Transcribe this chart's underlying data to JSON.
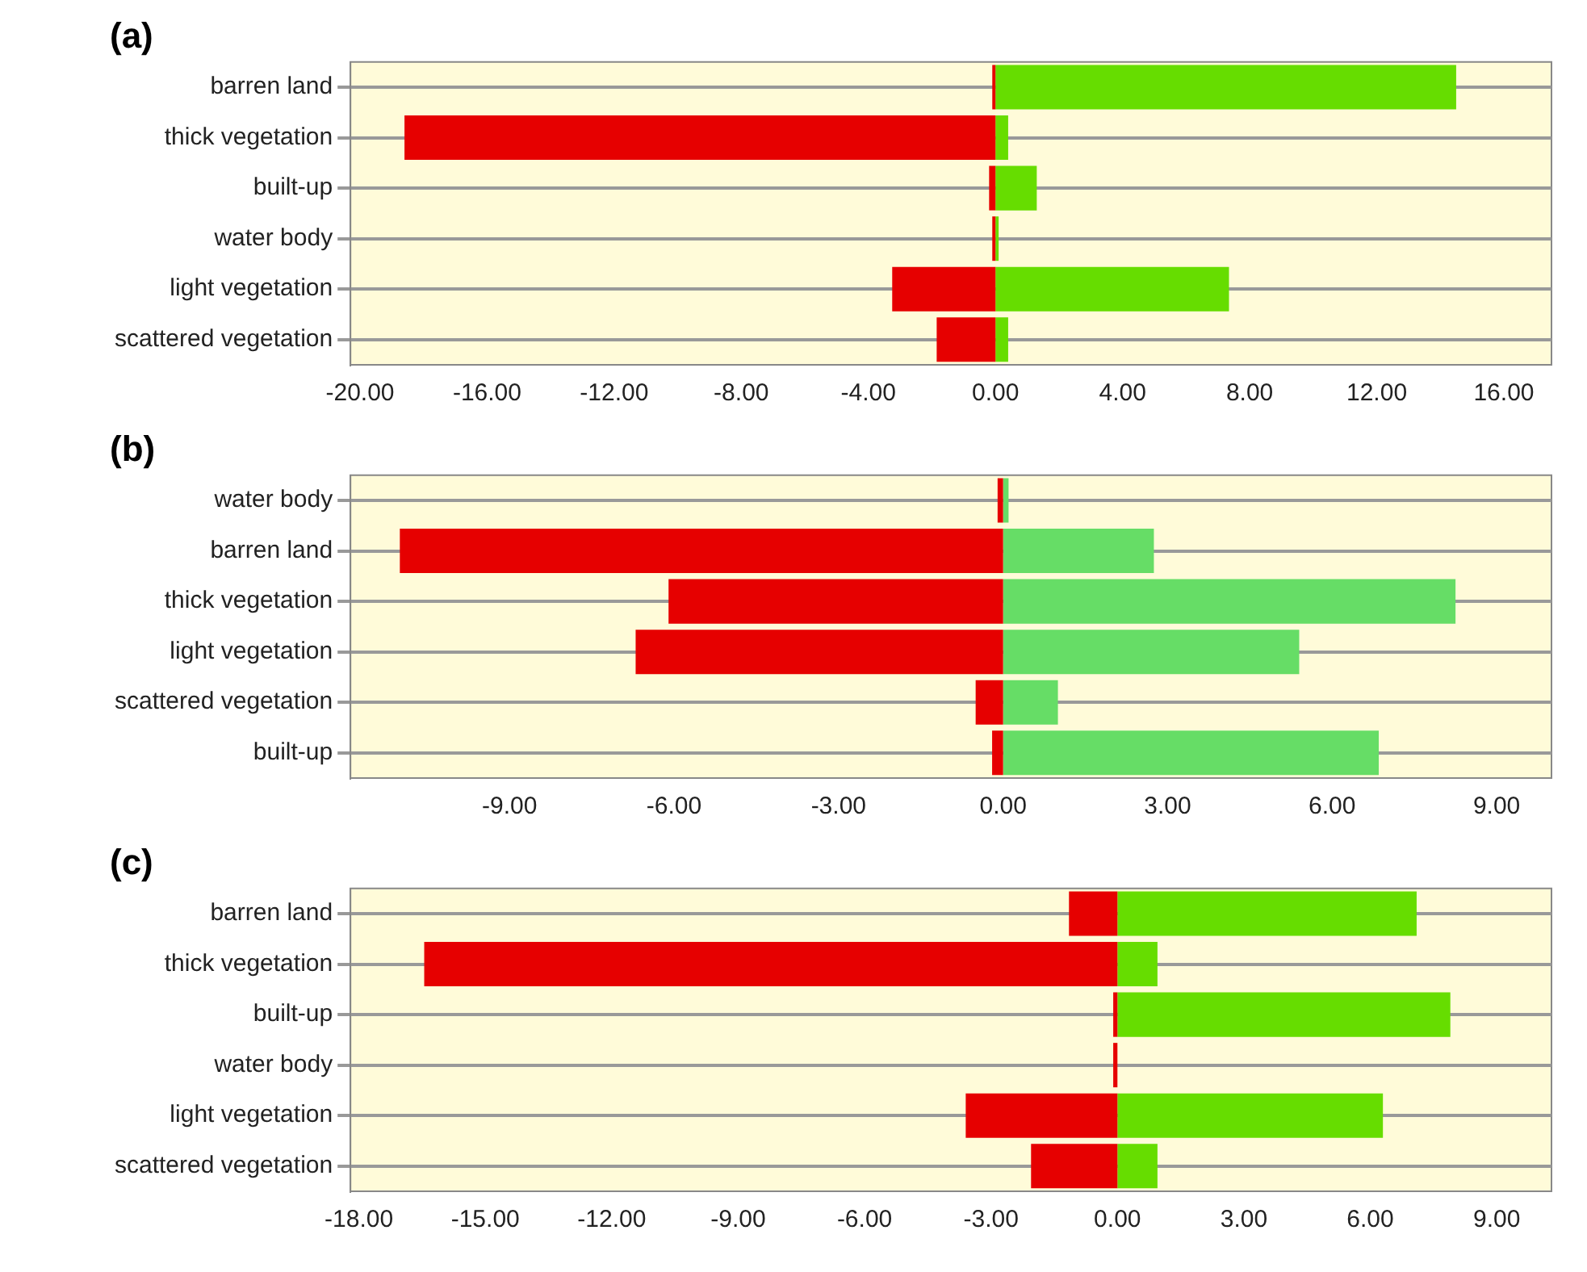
{
  "chart_data": [
    {
      "type": "bar",
      "title": "(a)",
      "orientation": "horizontal",
      "stacked": true,
      "grid": "y",
      "legend": false,
      "categories": [
        "barren land",
        "thick vegetation",
        "built-up",
        "water body",
        "light vegetation",
        "scattered vegetation"
      ],
      "series": [
        {
          "color": "#e60000",
          "values": [
            -0.1,
            -18.6,
            -0.2,
            -0.1,
            -3.25,
            -1.85
          ]
        },
        {
          "color": "#66dd00",
          "values": [
            14.5,
            0.4,
            1.3,
            0.1,
            7.35,
            0.4
          ]
        }
      ],
      "xlim": [
        -20.3,
        17.5
      ],
      "xticks": [
        {
          "value": -20,
          "label": "-20.00"
        },
        {
          "value": -16,
          "label": "-16.00"
        },
        {
          "value": -12,
          "label": "-12.00"
        },
        {
          "value": -8,
          "label": "-8.00"
        },
        {
          "value": -4,
          "label": "-4.00"
        },
        {
          "value": 0,
          "label": "0.00"
        },
        {
          "value": 4,
          "label": "4.00"
        },
        {
          "value": 8,
          "label": "8.00"
        },
        {
          "value": 12,
          "label": "12.00"
        },
        {
          "value": 16,
          "label": "16.00"
        }
      ]
    },
    {
      "type": "bar",
      "title": "(b)",
      "orientation": "horizontal",
      "stacked": true,
      "grid": "y",
      "legend": false,
      "categories": [
        "water body",
        "barren land",
        "thick vegetation",
        "light vegetation",
        "scattered vegetation",
        "built-up"
      ],
      "series": [
        {
          "color": "#e60000",
          "values": [
            -0.1,
            -11.0,
            -6.1,
            -6.7,
            -0.5,
            -0.2
          ]
        },
        {
          "color": "#66dd66",
          "values": [
            0.1,
            2.75,
            8.25,
            5.4,
            1.0,
            6.85
          ]
        }
      ],
      "xlim": [
        -11.9,
        10
      ],
      "xticks": [
        {
          "value": -9,
          "label": "-9.00"
        },
        {
          "value": -6,
          "label": "-6.00"
        },
        {
          "value": -3,
          "label": "-3.00"
        },
        {
          "value": 0,
          "label": "0.00"
        },
        {
          "value": 3,
          "label": "3.00"
        },
        {
          "value": 6,
          "label": "6.00"
        },
        {
          "value": 9,
          "label": "9.00"
        }
      ]
    },
    {
      "type": "bar",
      "title": "(c)",
      "orientation": "horizontal",
      "stacked": true,
      "grid": "y",
      "legend": false,
      "categories": [
        "barren land",
        "thick vegetation",
        "built-up",
        "water body",
        "light vegetation",
        "scattered vegetation"
      ],
      "series": [
        {
          "color": "#e60000",
          "values": [
            -1.15,
            -16.45,
            -0.1,
            -0.1,
            -3.6,
            -2.05
          ]
        },
        {
          "color": "#66dd00",
          "values": [
            7.1,
            0.95,
            7.9,
            0,
            6.3,
            0.95
          ]
        }
      ],
      "xlim": [
        -18.2,
        10.3
      ],
      "xticks": [
        {
          "value": -18,
          "label": "-18.00"
        },
        {
          "value": -15,
          "label": "-15.00"
        },
        {
          "value": -12,
          "label": "-12.00"
        },
        {
          "value": -9,
          "label": "-9.00"
        },
        {
          "value": -6,
          "label": "-6.00"
        },
        {
          "value": -3,
          "label": "-3.00"
        },
        {
          "value": 0,
          "label": "0.00"
        },
        {
          "value": 3,
          "label": "3.00"
        },
        {
          "value": 6,
          "label": "6.00"
        },
        {
          "value": 9,
          "label": "9.00"
        }
      ]
    }
  ]
}
